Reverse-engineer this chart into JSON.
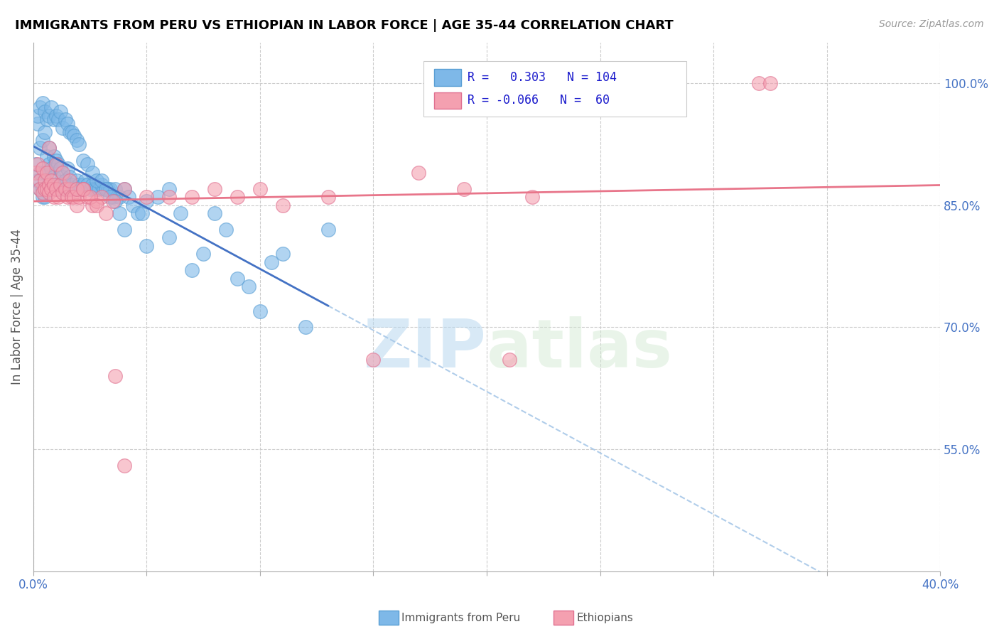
{
  "title": "IMMIGRANTS FROM PERU VS ETHIOPIAN IN LABOR FORCE | AGE 35-44 CORRELATION CHART",
  "source": "Source: ZipAtlas.com",
  "ylabel": "In Labor Force | Age 35-44",
  "xlim": [
    0.0,
    0.4
  ],
  "ylim": [
    0.4,
    1.05
  ],
  "yticks": [
    0.55,
    0.7,
    0.85,
    1.0
  ],
  "ytick_labels": [
    "55.0%",
    "70.0%",
    "85.0%",
    "100.0%"
  ],
  "xticks": [
    0.0,
    0.05,
    0.1,
    0.15,
    0.2,
    0.25,
    0.3,
    0.35,
    0.4
  ],
  "xtick_labels": [
    "0.0%",
    "",
    "",
    "",
    "",
    "",
    "",
    "",
    "40.0%"
  ],
  "peru_color": "#7EB8E8",
  "peru_edge_color": "#5A9FD4",
  "ethiopian_color": "#F4A0B0",
  "ethiopian_edge_color": "#E07090",
  "peru_R": 0.303,
  "peru_N": 104,
  "ethiopian_R": -0.066,
  "ethiopian_N": 60,
  "peru_line_color": "#4472C4",
  "ethiopian_line_color": "#E8758A",
  "dashed_line_color": "#A8C8E8",
  "watermark_zip": "ZIP",
  "watermark_atlas": "atlas",
  "legend_label_peru": "Immigrants from Peru",
  "legend_label_ethiopian": "Ethiopians",
  "peru_x": [
    0.001,
    0.002,
    0.002,
    0.003,
    0.003,
    0.003,
    0.004,
    0.004,
    0.004,
    0.005,
    0.005,
    0.005,
    0.006,
    0.006,
    0.007,
    0.007,
    0.007,
    0.008,
    0.008,
    0.009,
    0.009,
    0.01,
    0.01,
    0.011,
    0.011,
    0.012,
    0.012,
    0.013,
    0.014,
    0.015,
    0.015,
    0.016,
    0.017,
    0.018,
    0.019,
    0.02,
    0.021,
    0.022,
    0.023,
    0.024,
    0.025,
    0.026,
    0.027,
    0.028,
    0.029,
    0.03,
    0.031,
    0.032,
    0.033,
    0.034,
    0.035,
    0.036,
    0.038,
    0.04,
    0.042,
    0.044,
    0.046,
    0.048,
    0.05,
    0.055,
    0.06,
    0.065,
    0.07,
    0.075,
    0.08,
    0.085,
    0.09,
    0.095,
    0.1,
    0.105,
    0.11,
    0.12,
    0.13,
    0.002,
    0.003,
    0.004,
    0.005,
    0.006,
    0.007,
    0.008,
    0.009,
    0.01,
    0.011,
    0.012,
    0.013,
    0.014,
    0.015,
    0.016,
    0.017,
    0.018,
    0.019,
    0.02,
    0.022,
    0.024,
    0.026,
    0.028,
    0.03,
    0.032,
    0.034,
    0.036,
    0.038,
    0.04,
    0.05,
    0.06
  ],
  "peru_y": [
    0.9,
    0.88,
    0.95,
    0.92,
    0.89,
    0.87,
    0.93,
    0.87,
    0.86,
    0.94,
    0.89,
    0.86,
    0.91,
    0.87,
    0.92,
    0.9,
    0.875,
    0.895,
    0.875,
    0.91,
    0.885,
    0.905,
    0.875,
    0.9,
    0.87,
    0.895,
    0.87,
    0.885,
    0.88,
    0.895,
    0.87,
    0.885,
    0.875,
    0.87,
    0.88,
    0.875,
    0.87,
    0.875,
    0.88,
    0.875,
    0.87,
    0.875,
    0.87,
    0.87,
    0.87,
    0.875,
    0.87,
    0.87,
    0.87,
    0.87,
    0.86,
    0.87,
    0.86,
    0.87,
    0.86,
    0.85,
    0.84,
    0.84,
    0.855,
    0.86,
    0.87,
    0.84,
    0.77,
    0.79,
    0.84,
    0.82,
    0.76,
    0.75,
    0.72,
    0.78,
    0.79,
    0.7,
    0.82,
    0.96,
    0.97,
    0.975,
    0.965,
    0.955,
    0.96,
    0.97,
    0.955,
    0.96,
    0.955,
    0.965,
    0.945,
    0.955,
    0.95,
    0.94,
    0.94,
    0.935,
    0.93,
    0.925,
    0.905,
    0.9,
    0.89,
    0.88,
    0.88,
    0.87,
    0.86,
    0.855,
    0.84,
    0.82,
    0.8,
    0.81
  ],
  "eth_x": [
    0.001,
    0.002,
    0.003,
    0.003,
    0.004,
    0.004,
    0.005,
    0.005,
    0.006,
    0.006,
    0.007,
    0.007,
    0.008,
    0.008,
    0.009,
    0.009,
    0.01,
    0.011,
    0.012,
    0.013,
    0.014,
    0.015,
    0.016,
    0.017,
    0.018,
    0.019,
    0.02,
    0.022,
    0.024,
    0.026,
    0.028,
    0.03,
    0.035,
    0.04,
    0.05,
    0.06,
    0.07,
    0.08,
    0.09,
    0.1,
    0.11,
    0.13,
    0.15,
    0.17,
    0.19,
    0.21,
    0.22,
    0.32,
    0.325,
    0.007,
    0.01,
    0.013,
    0.016,
    0.019,
    0.022,
    0.025,
    0.028,
    0.032,
    0.036,
    0.04
  ],
  "eth_y": [
    0.89,
    0.9,
    0.88,
    0.87,
    0.895,
    0.865,
    0.88,
    0.87,
    0.89,
    0.87,
    0.875,
    0.865,
    0.88,
    0.87,
    0.875,
    0.86,
    0.87,
    0.86,
    0.875,
    0.865,
    0.87,
    0.86,
    0.87,
    0.86,
    0.86,
    0.85,
    0.86,
    0.87,
    0.86,
    0.85,
    0.855,
    0.86,
    0.855,
    0.87,
    0.86,
    0.86,
    0.86,
    0.87,
    0.86,
    0.87,
    0.85,
    0.86,
    0.66,
    0.89,
    0.87,
    0.66,
    0.86,
    1.0,
    1.0,
    0.92,
    0.9,
    0.89,
    0.88,
    0.87,
    0.87,
    0.86,
    0.85,
    0.84,
    0.64,
    0.53
  ]
}
